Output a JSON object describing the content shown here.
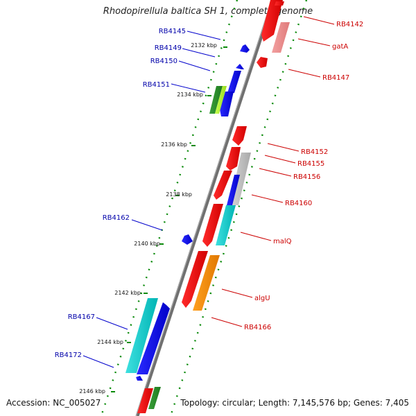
{
  "title": "Rhodopirellula baltica SH 1, complete genome",
  "footer": {
    "accession": "Accession: NC_005027",
    "summary": "Topology: circular; Length: 7,145,576 bp; Genes: 7,405"
  },
  "colors": {
    "backbone": "#808080",
    "tick": "#008000",
    "left_label": "#0000aa",
    "right_label": "#cc0000"
  },
  "ticks": [
    "2132 kbp",
    "2134 kbp",
    "2136 kbp",
    "2138 kbp",
    "2140 kbp",
    "2142 kbp",
    "2144 kbp",
    "2146 kbp"
  ],
  "genes_left": [
    "RB4145",
    "RB4149",
    "RB4150",
    "RB4151",
    "RB4162",
    "RB4167",
    "RB4172"
  ],
  "genes_right": [
    "RB4142",
    "gatA",
    "RB4147",
    "RB4152",
    "RB4155",
    "RB4156",
    "RB4160",
    "malQ",
    "algU",
    "RB4166"
  ]
}
